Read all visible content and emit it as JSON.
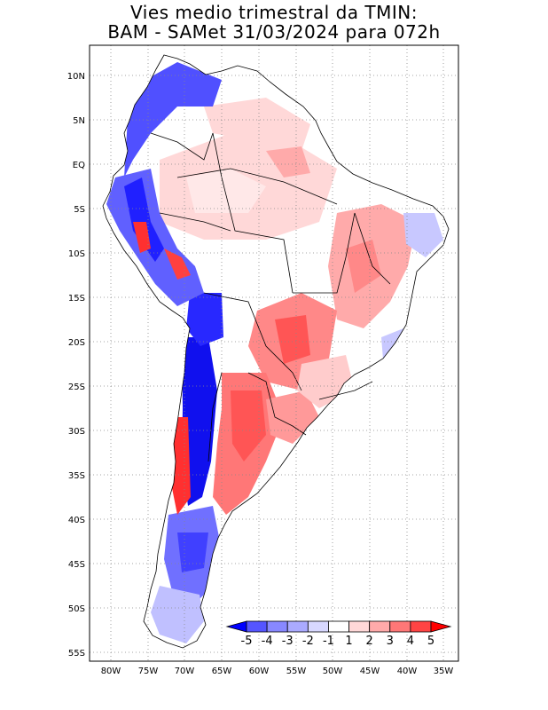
{
  "title": {
    "line1": "Vies medio trimestral da TMIN:",
    "line2": "BAM - SAMet 31/03/2024  para 072h"
  },
  "lat_ticks": [
    "10N",
    "5N",
    "EQ",
    "5S",
    "10S",
    "15S",
    "20S",
    "25S",
    "30S",
    "35S",
    "40S",
    "45S",
    "50S",
    "55S"
  ],
  "lon_ticks": [
    "80W",
    "75W",
    "70W",
    "65W",
    "60W",
    "55W",
    "50W",
    "45W",
    "40W",
    "35W"
  ],
  "colorbar": {
    "labels": [
      "-5",
      "-4",
      "-3",
      "-2",
      "-1",
      "1",
      "2",
      "3",
      "4",
      "5"
    ],
    "colors": [
      "#0000ff",
      "#5555ff",
      "#8888ff",
      "#aaaaff",
      "#d8d8ff",
      "#ffffff",
      "#ffd8d8",
      "#ffaaaa",
      "#ff7777",
      "#ff4444",
      "#ff0000"
    ]
  },
  "colors": {
    "strong_blue": "#1010ee",
    "mid_blue": "#7070ff",
    "light_blue": "#c8c8ff",
    "pale_red": "#ffd8d8",
    "light_red": "#ffaaaa",
    "mid_red": "#ff7070",
    "strong_red": "#ff3030",
    "grid": "#888888"
  }
}
